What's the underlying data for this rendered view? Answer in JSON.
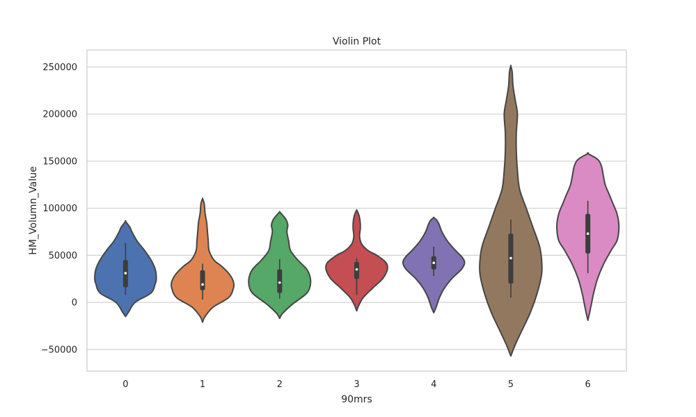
{
  "chart_data": {
    "type": "violin",
    "title": "Violin Plot",
    "xlabel": "90mrs",
    "ylabel": "HM_Volumn_Value",
    "categories": [
      "0",
      "1",
      "2",
      "3",
      "4",
      "5",
      "6"
    ],
    "ylim": [
      -73000,
      268000
    ],
    "yticks": [
      -50000,
      0,
      50000,
      100000,
      150000,
      200000,
      250000
    ],
    "ytick_labels": [
      "−50000",
      "0",
      "50000",
      "100000",
      "150000",
      "200000",
      "250000"
    ],
    "grid": true,
    "legend": "none",
    "colors": [
      "#4c72b0",
      "#dd8452",
      "#55a868",
      "#c44e52",
      "#8172b3",
      "#937860",
      "#da8bc3"
    ],
    "edge_color": "#454545",
    "violins": [
      {
        "category": "0",
        "min": 8000,
        "q1": 16000,
        "median": 31000,
        "q3": 45000,
        "max": 63000,
        "extent": [
          -15000,
          86000
        ],
        "density": [
          [
            -15000,
            0
          ],
          [
            -10000,
            3
          ],
          [
            0,
            9
          ],
          [
            10000,
            24
          ],
          [
            20000,
            28
          ],
          [
            25000,
            29
          ],
          [
            35000,
            28
          ],
          [
            45000,
            24
          ],
          [
            55000,
            18
          ],
          [
            65000,
            11
          ],
          [
            75000,
            6
          ],
          [
            80000,
            4
          ],
          [
            86000,
            0
          ]
        ]
      },
      {
        "category": "1",
        "min": 3000,
        "q1": 13000,
        "median": 19000,
        "q3": 34000,
        "max": 41000,
        "extent": [
          -21000,
          110000
        ],
        "density": [
          [
            -21000,
            0
          ],
          [
            -15000,
            3
          ],
          [
            -5000,
            13
          ],
          [
            5000,
            32
          ],
          [
            15000,
            38
          ],
          [
            22000,
            38
          ],
          [
            30000,
            33
          ],
          [
            38000,
            24
          ],
          [
            45000,
            14
          ],
          [
            55000,
            8
          ],
          [
            65000,
            7
          ],
          [
            75000,
            6
          ],
          [
            85000,
            5
          ],
          [
            95000,
            3
          ],
          [
            105000,
            2
          ],
          [
            110000,
            0
          ]
        ]
      },
      {
        "category": "2",
        "min": 4000,
        "q1": 10000,
        "median": 21000,
        "q3": 35000,
        "max": 46000,
        "extent": [
          -17000,
          96000
        ],
        "density": [
          [
            -17000,
            0
          ],
          [
            -12000,
            3
          ],
          [
            -2000,
            14
          ],
          [
            8000,
            28
          ],
          [
            15000,
            33
          ],
          [
            25000,
            34
          ],
          [
            35000,
            30
          ],
          [
            45000,
            20
          ],
          [
            55000,
            12
          ],
          [
            65000,
            10
          ],
          [
            75000,
            8
          ],
          [
            82000,
            9
          ],
          [
            88000,
            7
          ],
          [
            93000,
            3
          ],
          [
            96000,
            0
          ]
        ]
      },
      {
        "category": "3",
        "min": 8000,
        "q1": 25000,
        "median": 35000,
        "q3": 43000,
        "max": 47000,
        "extent": [
          -9000,
          98000
        ],
        "density": [
          [
            -9000,
            0
          ],
          [
            -3000,
            3
          ],
          [
            5000,
            9
          ],
          [
            15000,
            22
          ],
          [
            25000,
            36
          ],
          [
            33000,
            42
          ],
          [
            38000,
            43
          ],
          [
            43000,
            40
          ],
          [
            50000,
            28
          ],
          [
            55000,
            16
          ],
          [
            62000,
            7
          ],
          [
            70000,
            4
          ],
          [
            78000,
            5
          ],
          [
            84000,
            5
          ],
          [
            90000,
            4
          ],
          [
            95000,
            2
          ],
          [
            98000,
            0
          ]
        ]
      },
      {
        "category": "4",
        "min": 28000,
        "q1": 35000,
        "median": 42000,
        "q3": 49000,
        "max": 59000,
        "extent": [
          -11000,
          90000
        ],
        "density": [
          [
            -11000,
            0
          ],
          [
            -5000,
            3
          ],
          [
            5000,
            7
          ],
          [
            15000,
            13
          ],
          [
            25000,
            22
          ],
          [
            35000,
            34
          ],
          [
            42000,
            38
          ],
          [
            48000,
            35
          ],
          [
            55000,
            27
          ],
          [
            65000,
            17
          ],
          [
            75000,
            10
          ],
          [
            82000,
            7
          ],
          [
            87000,
            4
          ],
          [
            90000,
            0
          ]
        ]
      },
      {
        "category": "5",
        "min": 5000,
        "q1": 20000,
        "median": 47000,
        "q3": 73000,
        "max": 88000,
        "extent": [
          -57000,
          251000
        ],
        "density": [
          [
            -57000,
            0
          ],
          [
            -45000,
            2
          ],
          [
            -30000,
            5
          ],
          [
            -10000,
            9
          ],
          [
            10000,
            12
          ],
          [
            30000,
            14
          ],
          [
            45000,
            14
          ],
          [
            60000,
            13
          ],
          [
            80000,
            10
          ],
          [
            100000,
            7
          ],
          [
            120000,
            4
          ],
          [
            140000,
            3
          ],
          [
            160000,
            2.5
          ],
          [
            180000,
            2.5
          ],
          [
            200000,
            3
          ],
          [
            215000,
            2
          ],
          [
            230000,
            1
          ],
          [
            245000,
            0.6
          ],
          [
            251000,
            0
          ]
        ]
      },
      {
        "category": "6",
        "min": 31000,
        "q1": 52000,
        "median": 73000,
        "q3": 94000,
        "max": 108000,
        "extent": [
          -19000,
          158000
        ],
        "density": [
          [
            -19000,
            0
          ],
          [
            -10000,
            1
          ],
          [
            0,
            2
          ],
          [
            10000,
            3
          ],
          [
            25000,
            5
          ],
          [
            40000,
            8
          ],
          [
            55000,
            12
          ],
          [
            65000,
            15
          ],
          [
            75000,
            16
          ],
          [
            85000,
            16
          ],
          [
            95000,
            15
          ],
          [
            105000,
            13
          ],
          [
            115000,
            11
          ],
          [
            125000,
            9
          ],
          [
            135000,
            8
          ],
          [
            145000,
            7
          ],
          [
            152000,
            5
          ],
          [
            158000,
            0
          ]
        ]
      }
    ]
  }
}
